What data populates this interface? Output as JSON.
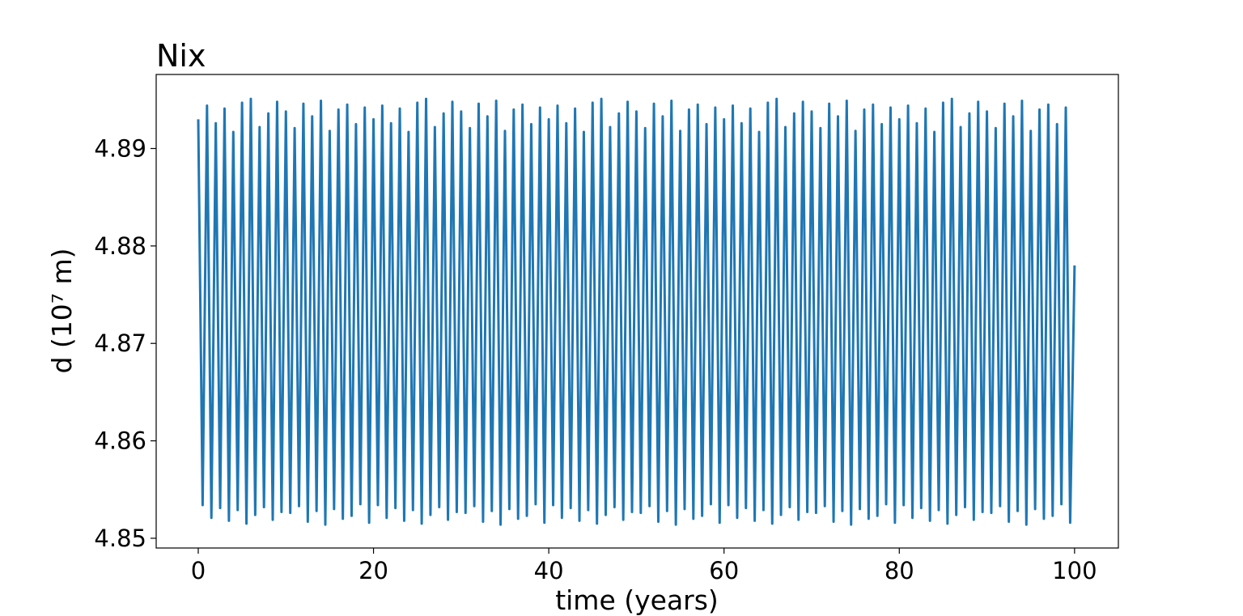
{
  "chart_data": {
    "type": "line",
    "title": "Nix",
    "x_label": "time (years)",
    "y_label": "d (10⁷ m)",
    "x": [
      0,
      0.5,
      1,
      1.5,
      2,
      2.5,
      3,
      3.5,
      4,
      4.5,
      5,
      5.5,
      6,
      6.5,
      7,
      7.5,
      8,
      8.5,
      9,
      9.5,
      10,
      10.5,
      11,
      11.5,
      12,
      12.5,
      13,
      13.5,
      14,
      14.5,
      15,
      15.5,
      16,
      16.5,
      17,
      17.5,
      18,
      18.5,
      19,
      19.5,
      20,
      20.5,
      21,
      21.5,
      22,
      22.5,
      23,
      23.5,
      24,
      24.5,
      25,
      25.5,
      26,
      26.5,
      27,
      27.5,
      28,
      28.5,
      29,
      29.5,
      30,
      30.5,
      31,
      31.5,
      32,
      32.5,
      33,
      33.5,
      34,
      34.5,
      35,
      35.5,
      36,
      36.5,
      37,
      37.5,
      38,
      38.5,
      39,
      39.5,
      40,
      40.5,
      41,
      41.5,
      42,
      42.5,
      43,
      43.5,
      44,
      44.5,
      45,
      45.5,
      46,
      46.5,
      47,
      47.5,
      48,
      48.5,
      49,
      49.5,
      50,
      50.5,
      51,
      51.5,
      52,
      52.5,
      53,
      53.5,
      54,
      54.5,
      55,
      55.5,
      56,
      56.5,
      57,
      57.5,
      58,
      58.5,
      59,
      59.5,
      60,
      60.5,
      61,
      61.5,
      62,
      62.5,
      63,
      63.5,
      64,
      64.5,
      65,
      65.5,
      66,
      66.5,
      67,
      67.5,
      68,
      68.5,
      69,
      69.5,
      70,
      70.5,
      71,
      71.5,
      72,
      72.5,
      73,
      73.5,
      74,
      74.5,
      75,
      75.5,
      76,
      76.5,
      77,
      77.5,
      78,
      78.5,
      79,
      79.5,
      80,
      80.5,
      81,
      81.5,
      82,
      82.5,
      83,
      83.5,
      84,
      84.5,
      85,
      85.5,
      86,
      86.5,
      87,
      87.5,
      88,
      88.5,
      89,
      89.5,
      90,
      90.5,
      91,
      91.5,
      92,
      92.5,
      93,
      93.5,
      94,
      94.5,
      95,
      95.5,
      96,
      96.5,
      97,
      97.5,
      98,
      98.5,
      99,
      99.5,
      100
    ],
    "values": [
      4.893,
      4.8534,
      4.8944,
      4.8521,
      4.8926,
      4.8531,
      4.8941,
      4.8518,
      4.8917,
      4.8529,
      4.8947,
      4.8515,
      4.8951,
      4.8524,
      4.8922,
      4.8532,
      4.8936,
      4.8519,
      4.8948,
      4.8527,
      4.8938,
      4.8526,
      4.8921,
      4.8533,
      4.8946,
      4.8517,
      4.8933,
      4.8528,
      4.8949,
      4.8514,
      4.8918,
      4.853,
      4.894,
      4.852,
      4.8945,
      4.8523,
      4.8925,
      4.8535,
      4.8942,
      4.8516,
      4.893,
      4.8534,
      4.8944,
      4.8521,
      4.8926,
      4.8531,
      4.8941,
      4.8518,
      4.8917,
      4.8529,
      4.8947,
      4.8515,
      4.8951,
      4.8524,
      4.8922,
      4.8532,
      4.8936,
      4.8519,
      4.8948,
      4.8527,
      4.8938,
      4.8526,
      4.8921,
      4.8533,
      4.8946,
      4.8517,
      4.8933,
      4.8528,
      4.8949,
      4.8514,
      4.8918,
      4.853,
      4.894,
      4.852,
      4.8945,
      4.8523,
      4.8925,
      4.8535,
      4.8942,
      4.8516,
      4.893,
      4.8534,
      4.8944,
      4.8521,
      4.8926,
      4.8531,
      4.8941,
      4.8518,
      4.8917,
      4.8529,
      4.8947,
      4.8515,
      4.8951,
      4.8524,
      4.8922,
      4.8532,
      4.8936,
      4.8519,
      4.8948,
      4.8527,
      4.8938,
      4.8526,
      4.8921,
      4.8533,
      4.8946,
      4.8517,
      4.8933,
      4.8528,
      4.8949,
      4.8514,
      4.8918,
      4.853,
      4.894,
      4.852,
      4.8945,
      4.8523,
      4.8925,
      4.8535,
      4.8942,
      4.8516,
      4.893,
      4.8534,
      4.8944,
      4.8521,
      4.8926,
      4.8531,
      4.8941,
      4.8518,
      4.8917,
      4.8529,
      4.8947,
      4.8515,
      4.8951,
      4.8524,
      4.8922,
      4.8532,
      4.8936,
      4.8519,
      4.8948,
      4.8527,
      4.8938,
      4.8526,
      4.8921,
      4.8533,
      4.8946,
      4.8517,
      4.8933,
      4.8528,
      4.8949,
      4.8514,
      4.8918,
      4.853,
      4.894,
      4.852,
      4.8945,
      4.8523,
      4.8925,
      4.8535,
      4.8942,
      4.8516,
      4.893,
      4.8534,
      4.8944,
      4.8521,
      4.8926,
      4.8531,
      4.8941,
      4.8518,
      4.8917,
      4.8529,
      4.8947,
      4.8515,
      4.8951,
      4.8524,
      4.8922,
      4.8532,
      4.8936,
      4.8519,
      4.8948,
      4.8527,
      4.8938,
      4.8526,
      4.8921,
      4.8533,
      4.8946,
      4.8517,
      4.8933,
      4.8528,
      4.8949,
      4.8514,
      4.8918,
      4.853,
      4.894,
      4.852,
      4.8945,
      4.8523,
      4.8925,
      4.8535,
      4.8942,
      4.8516,
      4.878
    ],
    "color": "#1f77b4",
    "xlim": [
      -4.8,
      105
    ],
    "xticks": [
      0,
      20,
      40,
      60,
      80,
      100
    ],
    "ylim": [
      4.849,
      4.8976
    ],
    "yticks": [
      4.85,
      4.86,
      4.87,
      4.88,
      4.89
    ]
  }
}
